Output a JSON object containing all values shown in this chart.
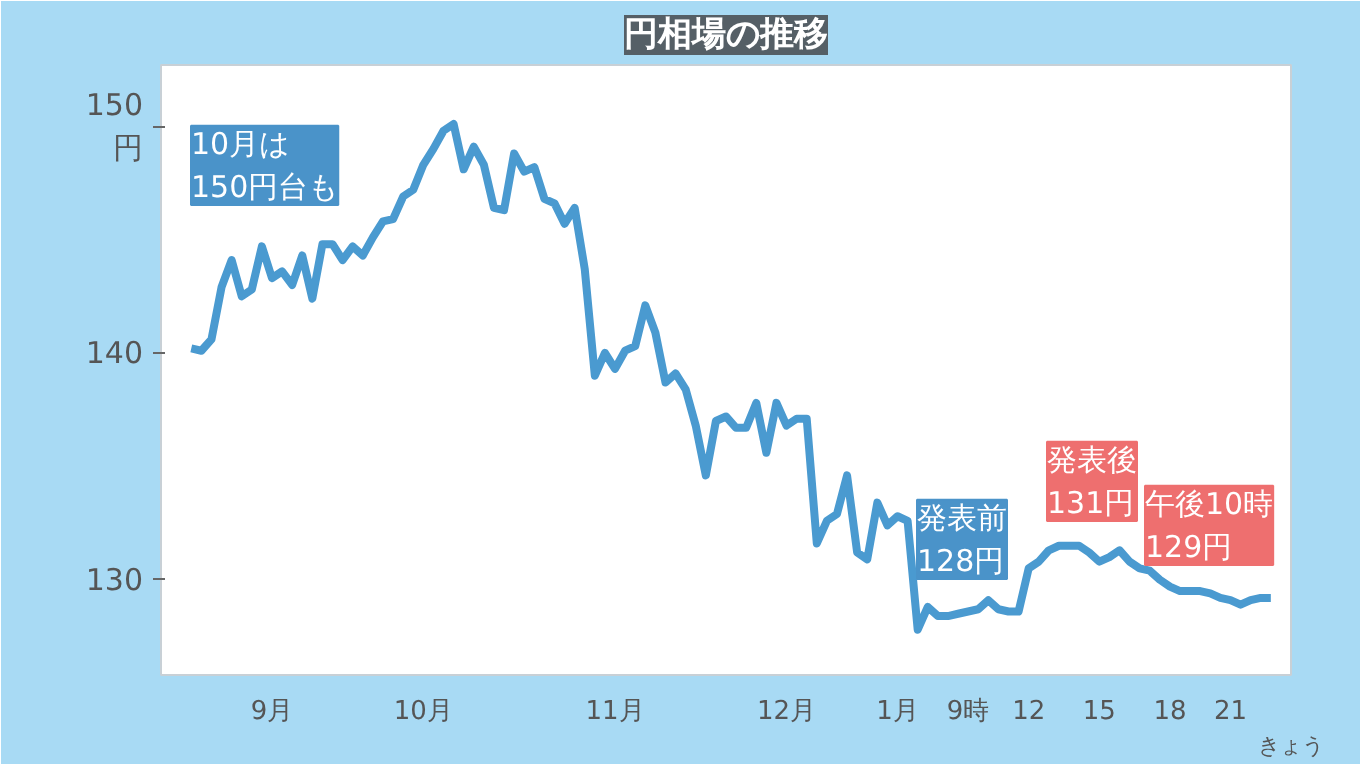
{
  "chart_data": {
    "type": "line",
    "title": "円相場の推移",
    "categories": [
      null,
      null,
      null,
      null,
      null,
      null,
      null,
      null,
      "9月",
      null,
      null,
      null,
      null,
      null,
      null,
      null,
      null,
      null,
      null,
      null,
      null,
      null,
      null,
      "10月",
      null,
      null,
      null,
      null,
      null,
      null,
      null,
      null,
      null,
      null,
      null,
      null,
      null,
      null,
      null,
      null,
      null,
      null,
      "11月",
      null,
      null,
      null,
      null,
      null,
      null,
      null,
      null,
      null,
      null,
      null,
      null,
      null,
      null,
      null,
      null,
      "12月",
      null,
      null,
      null,
      null,
      null,
      null,
      null,
      null,
      null,
      null,
      "1月",
      null,
      null,
      null,
      null,
      null,
      null,
      "9時",
      null,
      null,
      null,
      null,
      null,
      "12",
      null,
      null,
      null,
      null,
      null,
      null,
      "15",
      null,
      null,
      null,
      null,
      null,
      null,
      "18",
      null,
      null,
      null,
      null,
      null,
      "21",
      null,
      null,
      null,
      null
    ],
    "series": [
      {
        "color": "#4a9ad0",
        "values": [
          140.2,
          140.1,
          140.6,
          142.9,
          144.1,
          142.5,
          142.8,
          144.7,
          143.3,
          143.6,
          143.0,
          144.3,
          142.4,
          144.8,
          144.8,
          144.1,
          144.7,
          144.3,
          145.1,
          145.8,
          145.9,
          146.9,
          147.2,
          148.3,
          149.0,
          149.8,
          150.1,
          148.1,
          149.1,
          148.3,
          146.4,
          146.3,
          148.8,
          148.0,
          148.2,
          146.8,
          146.6,
          145.7,
          146.4,
          143.7,
          139.0,
          140.0,
          139.3,
          140.1,
          140.3,
          142.1,
          140.9,
          138.7,
          139.1,
          138.4,
          136.8,
          134.6,
          137.0,
          137.2,
          136.7,
          136.7,
          137.8,
          135.6,
          137.8,
          136.8,
          137.1,
          137.1,
          131.6,
          132.6,
          132.9,
          134.6,
          131.2,
          130.9,
          133.4,
          132.4,
          132.8,
          132.6,
          127.8,
          128.8,
          128.4,
          128.4,
          128.5,
          128.6,
          128.7,
          129.1,
          128.7,
          128.6,
          128.6,
          130.5,
          130.8,
          131.3,
          131.5,
          131.5,
          131.5,
          131.2,
          130.8,
          131.0,
          131.3,
          130.8,
          130.5,
          130.4,
          130.0,
          129.7,
          129.5,
          129.5,
          129.5,
          129.4,
          129.2,
          129.1,
          128.9,
          129.1,
          129.2,
          129.2
        ]
      }
    ],
    "ylim": [
      125.8,
      152.7
    ],
    "yticks": [
      {
        "value": 130,
        "label": "130"
      },
      {
        "value": 140,
        "label": "140"
      },
      {
        "value": 150,
        "label": "150\n円"
      }
    ],
    "grid": false,
    "annotations": [
      "10月は\n150円台も",
      "発表前\n128円",
      "発表後\n131円",
      "午後10時\n129円",
      "きょう"
    ]
  }
}
